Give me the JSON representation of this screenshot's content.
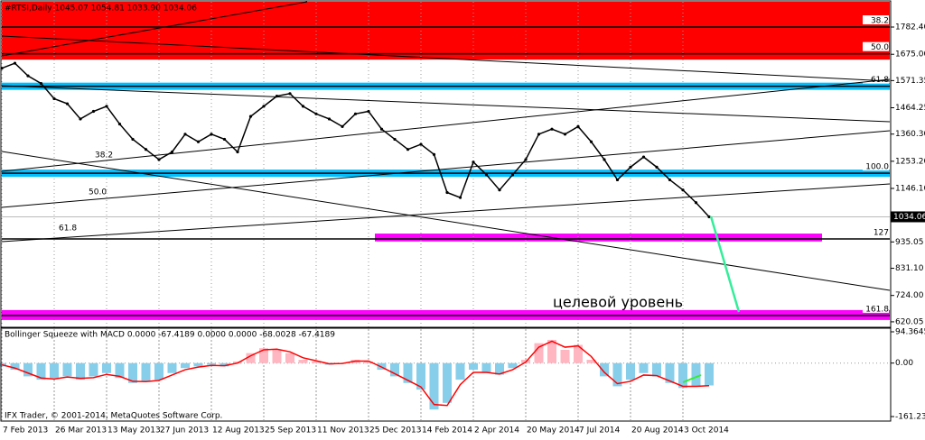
{
  "chart_data": [
    {
      "type": "line",
      "title": "#RTSI,Daily  1045.07 1054.81 1033.90 1034.06",
      "categories": [
        "7 Feb 2013",
        null,
        null,
        null,
        "26 Mar 2013",
        null,
        null,
        null,
        "13 May 2013",
        null,
        null,
        null,
        "27 Jun 2013",
        null,
        null,
        null,
        "12 Aug 2013",
        null,
        null,
        null,
        "25 Sep 2013",
        null,
        null,
        null,
        "11 Nov 2013",
        null,
        null,
        null,
        "25 Dec 2013",
        null,
        null,
        null,
        "14 Feb 2014",
        null,
        null,
        null,
        "2 Apr 2014",
        null,
        null,
        null,
        "20 May 2014",
        null,
        null,
        null,
        "7 Jul 2014",
        null,
        null,
        null,
        "20 Aug 2014",
        null,
        null,
        null,
        "3 Oct 2014",
        null,
        null
      ],
      "values": [
        1620,
        1640,
        1590,
        1560,
        1500,
        1480,
        1420,
        1450,
        1470,
        1400,
        1340,
        1300,
        1260,
        1290,
        1360,
        1330,
        1360,
        1340,
        1290,
        1430,
        1470,
        1510,
        1520,
        1470,
        1440,
        1420,
        1390,
        1440,
        1450,
        1380,
        1340,
        1300,
        1320,
        1280,
        1130,
        1110,
        1250,
        1200,
        1140,
        1200,
        1260,
        1360,
        1380,
        1360,
        1390,
        1330,
        1260,
        1180,
        1230,
        1270,
        1230,
        1180,
        1140,
        1090,
        1034.06
      ],
      "color": "#000000",
      "ylim": [
        602,
        1882
      ],
      "yticks": [
        {
          "value": 1782.4,
          "label": "1782.40"
        },
        {
          "value": 1675,
          "label": "1675.00"
        },
        1571.35,
        1464.25,
        {
          "value": 1360.3,
          "label": "1360.30"
        },
        {
          "value": 1253.2,
          "label": "1253.20"
        },
        {
          "value": 1146.1,
          "label": "1146.10"
        },
        935.05,
        {
          "value": 831.1,
          "label": "831.10"
        },
        {
          "value": 724,
          "label": "724.00"
        },
        620.05
      ],
      "last_price": {
        "value": 1034.06,
        "label": "1034.06"
      },
      "zone": {
        "from": 1654,
        "to": 1882,
        "color": "#ff0000"
      },
      "levels": [
        {
          "label": "38.2",
          "value": 1782.4,
          "color": "#000000"
        },
        {
          "label": "50.0",
          "value": 1677,
          "color": "#000000"
        },
        {
          "label": "61.8",
          "value": 1549,
          "color": "#00bfff"
        },
        {
          "label": "100.0",
          "value": 1206,
          "color": "#00bfff"
        },
        {
          "label": "127",
          "value": 947,
          "color": "#000000"
        },
        {
          "label": "161.8",
          "value": 645,
          "color": "#ff00ff"
        }
      ],
      "target_band": {
        "from": 937,
        "to": 968,
        "color": "#ff00ff"
      },
      "left_labels": [
        "38.2",
        "50.0",
        "61.8"
      ],
      "annotation": "целевой уровень"
    },
    {
      "type": "bar",
      "title": "Bollinger Squeeze with MACD 0.0000 -67.4189 0.0000 0.0000 -68.0028 -67.4189",
      "values": [
        -10,
        -20,
        -40,
        -50,
        -45,
        -40,
        -50,
        -40,
        -30,
        -45,
        -60,
        -55,
        -50,
        -30,
        -15,
        -10,
        -5,
        -10,
        5,
        30,
        45,
        40,
        30,
        10,
        5,
        -5,
        0,
        10,
        5,
        -20,
        -40,
        -60,
        -80,
        -140,
        -120,
        -50,
        -20,
        -30,
        -35,
        -15,
        10,
        60,
        70,
        40,
        55,
        10,
        -40,
        -70,
        -50,
        -30,
        -40,
        -60,
        -75,
        -70,
        -67.4189
      ],
      "line_values": [
        -5,
        -15,
        -30,
        -45,
        -48,
        -42,
        -46,
        -44,
        -34,
        -40,
        -55,
        -56,
        -52,
        -36,
        -20,
        -12,
        -7,
        -8,
        0,
        22,
        40,
        42,
        34,
        16,
        7,
        -2,
        -1,
        6,
        6,
        -12,
        -32,
        -52,
        -72,
        -125,
        -128,
        -65,
        -28,
        -28,
        -33,
        -20,
        3,
        48,
        66,
        48,
        52,
        20,
        -28,
        -62,
        -55,
        -36,
        -38,
        -54,
        -70,
        -70,
        -68.0028
      ],
      "positive_color": "#ffb6c1",
      "negative_color": "#87ceeb",
      "line_color": "#ff0000",
      "ylim": [
        -161.2315,
        94.3645
      ],
      "yticks": [
        -161.2315,
        {
          "value": 0,
          "label": "0.00"
        },
        94.3645
      ],
      "copyright": "IFX Trader, © 2001-2014, MetaQuotes Software Corp."
    }
  ]
}
